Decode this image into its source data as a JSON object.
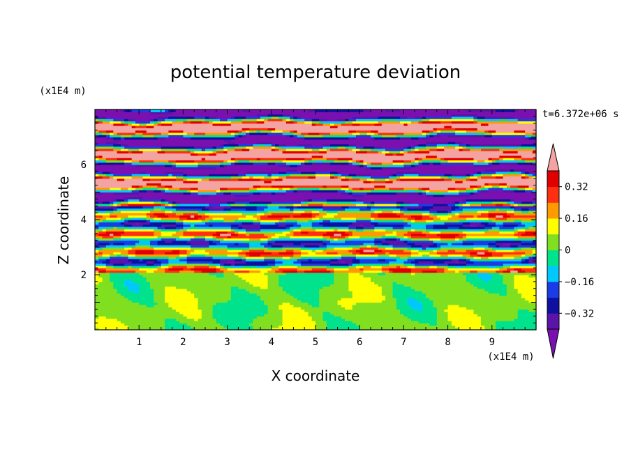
{
  "chart_data": {
    "type": "heatmap",
    "title": "potential temperature deviation",
    "xlabel": "X coordinate",
    "ylabel": "Z coordinate",
    "x_unit": "(x1E4 m)",
    "y_unit": "(x1E4 m)",
    "time_label": "t=6.372e+06 s",
    "xlim": [
      0,
      10
    ],
    "ylim": [
      0,
      8
    ],
    "x_ticks": [
      1,
      2,
      3,
      4,
      5,
      6,
      7,
      8,
      9
    ],
    "y_ticks": [
      2,
      4,
      6
    ],
    "colorbar": {
      "levels": [
        -0.4,
        -0.32,
        -0.24,
        -0.16,
        -0.08,
        0,
        0.08,
        0.16,
        0.24,
        0.32,
        0.4
      ],
      "tick_values": [
        0.32,
        0.16,
        0,
        -0.16,
        -0.32
      ],
      "tick_labels": [
        "0.32",
        "0.16",
        "0",
        "−0.16",
        "−0.32"
      ],
      "colors": [
        "#7a10b0",
        "#5b13a8",
        "#1010a0",
        "#1a3ce6",
        "#00c8ff",
        "#00e38c",
        "#80e020",
        "#ffff00",
        "#ff9a00",
        "#ff3010",
        "#e00000",
        "#f4a3a3"
      ],
      "extend": "both"
    }
  }
}
